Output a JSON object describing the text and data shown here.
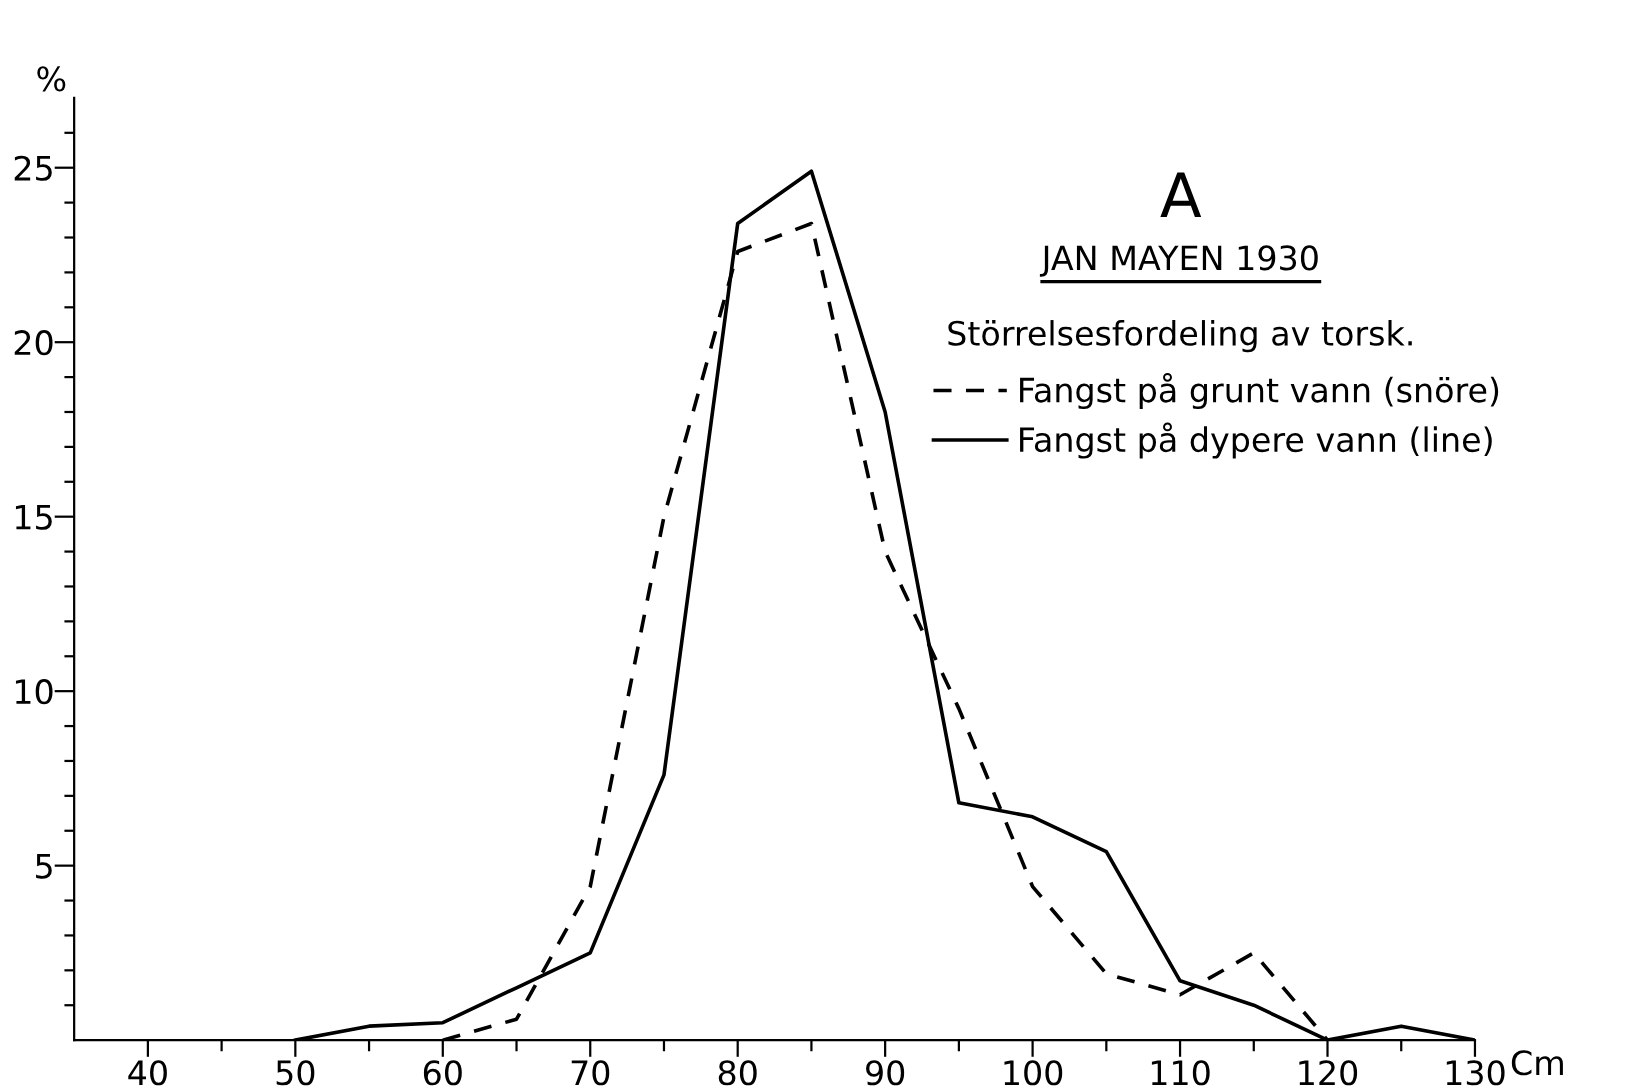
{
  "chart_data": {
    "type": "line",
    "title": "A",
    "subtitle": "JAN MAYEN 1930",
    "annotations": [
      "Störrelsesfordeling av torsk."
    ],
    "xlabel": "Cm",
    "ylabel": "%",
    "x": [
      50,
      55,
      60,
      65,
      70,
      75,
      80,
      85,
      90,
      95,
      100,
      105,
      110,
      115,
      120,
      125,
      130
    ],
    "series": [
      {
        "name": "Fangst på grunt vann (snöre)",
        "color": "#000000",
        "line_style": "dashed",
        "values": [
          null,
          null,
          0,
          0.6,
          4.4,
          15,
          22.6,
          23.4,
          14,
          9.5,
          4.4,
          1.9,
          1.3,
          2.5,
          0,
          null,
          null
        ]
      },
      {
        "name": "Fangst på dypere vann (line)",
        "color": "#000000",
        "line_style": "solid",
        "values": [
          0,
          0.4,
          0.5,
          1.5,
          2.5,
          7.6,
          23.4,
          24.9,
          18,
          6.8,
          6.4,
          5.4,
          1.7,
          1.0,
          0,
          0.4,
          0
        ]
      }
    ],
    "xlim": [
      35,
      130
    ],
    "xticks": [
      40,
      {
        "value": 45,
        "label": null
      },
      50,
      {
        "value": 55,
        "label": null
      },
      60,
      {
        "value": 65,
        "label": null
      },
      70,
      {
        "value": 75,
        "label": null
      },
      80,
      {
        "value": 85,
        "label": null
      },
      90,
      {
        "value": 95,
        "label": null
      },
      100,
      {
        "value": 105,
        "label": null
      },
      110,
      {
        "value": 115,
        "label": null
      },
      120,
      {
        "value": 125,
        "label": null
      },
      130
    ],
    "ylim": [
      0,
      27
    ],
    "yticks": [
      {
        "value": 1,
        "label": null
      },
      {
        "value": 2,
        "label": null
      },
      {
        "value": 3,
        "label": null
      },
      {
        "value": 4,
        "label": null
      },
      5,
      {
        "value": 6,
        "label": null
      },
      {
        "value": 7,
        "label": null
      },
      {
        "value": 8,
        "label": null
      },
      {
        "value": 9,
        "label": null
      },
      10,
      {
        "value": 11,
        "label": null
      },
      {
        "value": 12,
        "label": null
      },
      {
        "value": 13,
        "label": null
      },
      {
        "value": 14,
        "label": null
      },
      15,
      {
        "value": 16,
        "label": null
      },
      {
        "value": 17,
        "label": null
      },
      {
        "value": 18,
        "label": null
      },
      {
        "value": 19,
        "label": null
      },
      20,
      {
        "value": 21,
        "label": null
      },
      {
        "value": 22,
        "label": null
      },
      {
        "value": 23,
        "label": null
      },
      {
        "value": 24,
        "label": null
      },
      25,
      {
        "value": 26,
        "label": null
      }
    ],
    "grid": false,
    "legend": "top right"
  }
}
